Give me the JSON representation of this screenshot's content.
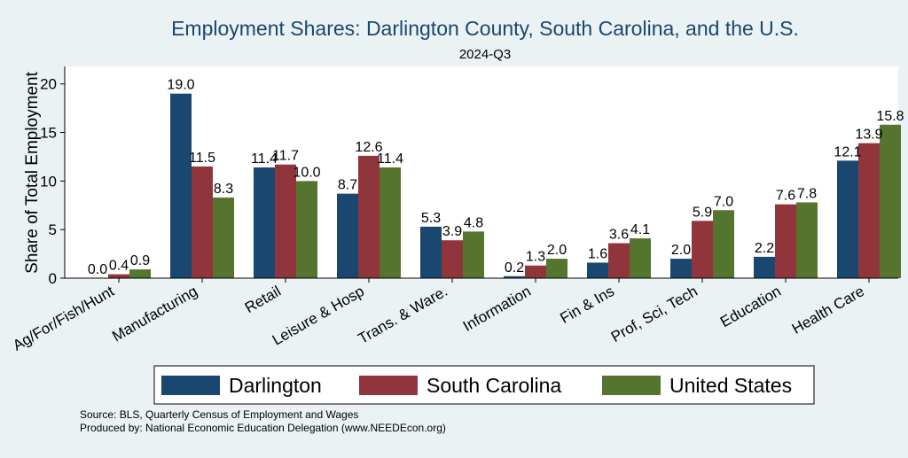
{
  "chart_data": {
    "type": "bar",
    "title": "Employment Shares: Darlington County, South Carolina, and the U.S.",
    "subtitle": "2024-Q3",
    "xlabel": "",
    "ylabel": "Share of Total Employment",
    "ylim": [
      0,
      21.8
    ],
    "yticks": [
      0,
      5,
      10,
      15,
      20
    ],
    "grid": false,
    "legend_position": "bottom",
    "categories": [
      "Ag/For/Fish/Hunt",
      "Manufacturing",
      "Retail",
      "Leisure & Hosp",
      "Trans. & Ware.",
      "Information",
      "Fin & Ins",
      "Prof, Sci, Tech",
      "Education",
      "Health Care"
    ],
    "series": [
      {
        "name": "Darlington",
        "color": "#1a476f",
        "values": [
          0.0,
          19.0,
          11.4,
          8.7,
          5.3,
          0.2,
          1.6,
          2.0,
          2.2,
          12.1
        ]
      },
      {
        "name": "South Carolina",
        "color": "#90353b",
        "values": [
          0.4,
          11.5,
          11.7,
          12.6,
          3.9,
          1.3,
          3.6,
          5.9,
          7.6,
          13.9
        ]
      },
      {
        "name": "United States",
        "color": "#55752f",
        "values": [
          0.9,
          8.3,
          10.0,
          11.4,
          4.8,
          2.0,
          4.1,
          7.0,
          7.8,
          15.8
        ]
      }
    ]
  },
  "notes": {
    "source": "Source: BLS, Quarterly Census of Employment and Wages",
    "produced_by": "Produced by: National Economic Education Delegation (www.NEEDEcon.org)"
  },
  "colors": {
    "background": "#eaf2f3",
    "title": "#1a476f"
  }
}
